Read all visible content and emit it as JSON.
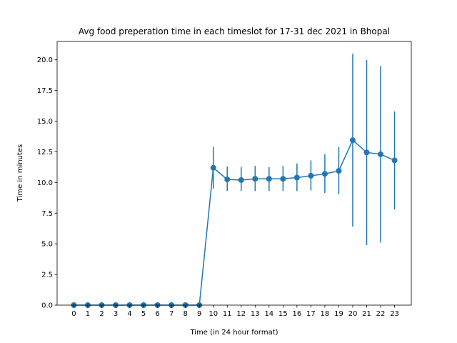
{
  "chart_data": {
    "type": "line",
    "title": "Avg food preperation time in each timeslot for 17-31 dec 2021 in Bhopal",
    "xlabel": "Time (in 24 hour format)",
    "ylabel": "Time in minutes",
    "ylim": [
      0,
      21.5
    ],
    "xlim": [
      -1.2,
      24.2
    ],
    "yticks": [
      "0.0",
      "2.5",
      "5.0",
      "7.5",
      "10.0",
      "12.5",
      "15.0",
      "17.5",
      "20.0"
    ],
    "grid": false,
    "color": "#1f77b4",
    "series": [
      {
        "x": [
          0,
          1,
          2,
          3,
          4,
          5,
          6,
          7,
          8,
          9,
          10,
          11,
          12,
          13,
          14,
          15,
          16,
          17,
          18,
          19,
          20,
          21,
          22,
          23
        ],
        "y": [
          0,
          0,
          0,
          0,
          0,
          0,
          0,
          0,
          0,
          0,
          11.2,
          10.25,
          10.2,
          10.3,
          10.3,
          10.3,
          10.4,
          10.55,
          10.7,
          10.95,
          13.45,
          12.45,
          12.3,
          11.8
        ],
        "err_low": [
          0,
          0,
          0,
          0,
          0,
          0,
          0,
          0,
          0,
          0,
          9.5,
          9.3,
          9.3,
          9.3,
          9.3,
          9.3,
          9.3,
          9.35,
          9.15,
          9.05,
          6.4,
          4.9,
          5.1,
          7.8
        ],
        "err_high": [
          0,
          0,
          0,
          0,
          0,
          0,
          0,
          0,
          0,
          0,
          12.9,
          11.3,
          11.25,
          11.35,
          11.25,
          11.35,
          11.55,
          11.8,
          12.3,
          12.9,
          20.5,
          20.0,
          19.5,
          15.8
        ]
      }
    ]
  }
}
